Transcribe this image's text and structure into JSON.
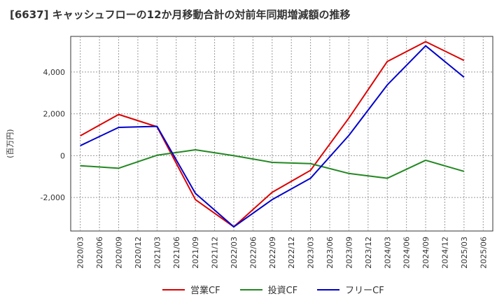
{
  "chart_data": {
    "type": "line",
    "title": "[6637]  キャッシュフローの12か月移動合計の対前年同期増減額の推移",
    "ylabel": "(百万円)",
    "xlabel": "",
    "ylim": [
      -3600,
      5700
    ],
    "yticks": [
      4000,
      2000,
      0,
      -2000
    ],
    "ytick_labels": [
      "4,000",
      "2,000",
      "0",
      "-2,000"
    ],
    "x": [
      "2020/03",
      "2020/06",
      "2020/09",
      "2020/12",
      "2021/03",
      "2021/06",
      "2021/09",
      "2021/12",
      "2022/03",
      "2022/06",
      "2022/09",
      "2022/12",
      "2023/03",
      "2023/06",
      "2023/09",
      "2023/12",
      "2024/03",
      "2024/06",
      "2024/09",
      "2024/12",
      "2025/03",
      "2025/06"
    ],
    "grid": true,
    "legend_position": "bottom",
    "series": [
      {
        "name": "営業CF",
        "color": "#dd0000",
        "values": [
          950,
          null,
          1970,
          null,
          1380,
          null,
          -2100,
          null,
          -3400,
          null,
          -1750,
          null,
          -700,
          null,
          1800,
          null,
          4500,
          null,
          5450,
          null,
          4550,
          null
        ]
      },
      {
        "name": "投資CF",
        "color": "#228822",
        "values": [
          -480,
          null,
          -600,
          null,
          20,
          null,
          280,
          null,
          0,
          null,
          -320,
          null,
          -380,
          null,
          -850,
          null,
          -1080,
          null,
          -220,
          null,
          -750,
          null
        ]
      },
      {
        "name": "フリーCF",
        "color": "#0000cc",
        "values": [
          480,
          null,
          1350,
          null,
          1400,
          null,
          -1800,
          null,
          -3400,
          null,
          -2100,
          null,
          -1080,
          null,
          970,
          null,
          3380,
          null,
          5250,
          null,
          3750,
          null
        ]
      }
    ]
  }
}
